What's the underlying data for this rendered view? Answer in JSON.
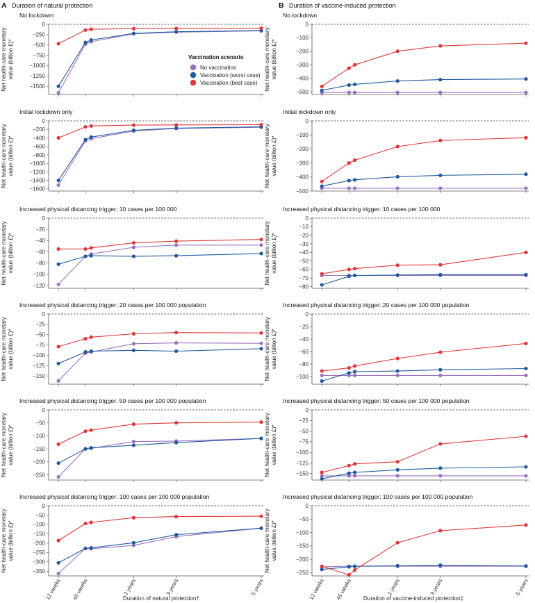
{
  "figure": {
    "panel_a": {
      "letter": "A",
      "title": "Duration of natural protection"
    },
    "panel_b": {
      "letter": "B",
      "title": "Duration of vaccine-induced protection"
    },
    "y_label_line1": "Net health-care monetary",
    "y_label_line2": "value (billion £)*",
    "x_label_a": "Duration of natural protection†",
    "x_label_b": "Duration of vaccine-induced protection‡",
    "x_ticks": [
      "12 weeks",
      "45 weeks",
      "2 years",
      "3 years",
      "5 years"
    ],
    "legend": {
      "title": "Vaccination scenario",
      "entries": [
        "No vaccination",
        "Vaccination (worst case)",
        "Vaccination (best case)"
      ]
    }
  },
  "colors": {
    "no_vaccination": "#9b72bd",
    "worst_case": "#1f5a9e",
    "best_case": "#e0373a",
    "axis": "#555555",
    "zero_line": "#333333"
  },
  "chart_data": [
    {
      "type": "line",
      "panel": "A",
      "title": "No lockdown",
      "ylim": [
        -1700,
        0
      ],
      "yticks": [
        0,
        -250,
        -500,
        -750,
        -1000,
        -1250,
        -1500
      ],
      "x": [
        12,
        45,
        52,
        104,
        156,
        260
      ],
      "series": [
        {
          "name": "No vaccination",
          "values": [
            -1660,
            -480,
            -420,
            -230,
            -190,
            -160
          ]
        },
        {
          "name": "Vaccination (worst case)",
          "values": [
            -1500,
            -440,
            -380,
            -220,
            -180,
            -150
          ]
        },
        {
          "name": "Vaccination (best case)",
          "values": [
            -470,
            -140,
            -120,
            -105,
            -100,
            -95
          ]
        }
      ]
    },
    {
      "type": "line",
      "panel": "A",
      "title": "Initial lockdown only",
      "ylim": [
        -1650,
        0
      ],
      "yticks": [
        0,
        -200,
        -400,
        -600,
        -800,
        -1000,
        -1200,
        -1400,
        -1600
      ],
      "x": [
        12,
        45,
        52,
        104,
        156,
        260
      ],
      "series": [
        {
          "name": "No vaccination",
          "values": [
            -1510,
            -470,
            -420,
            -240,
            -180,
            -150
          ]
        },
        {
          "name": "Vaccination (worst case)",
          "values": [
            -1400,
            -440,
            -380,
            -220,
            -170,
            -140
          ]
        },
        {
          "name": "Vaccination (best case)",
          "values": [
            -400,
            -140,
            -120,
            -100,
            -95,
            -90
          ]
        }
      ]
    },
    {
      "type": "line",
      "panel": "A",
      "title": "Increased physical distancing trigger: 10 cases per 100 000",
      "ylim": [
        -125,
        0
      ],
      "yticks": [
        0,
        -20,
        -40,
        -60,
        -80,
        -100,
        -120
      ],
      "x": [
        12,
        45,
        52,
        104,
        156,
        260
      ],
      "series": [
        {
          "name": "No vaccination",
          "values": [
            -118,
            -68,
            -64,
            -52,
            -48,
            -48
          ]
        },
        {
          "name": "Vaccination (worst case)",
          "values": [
            -82,
            -68,
            -67,
            -68,
            -67,
            -63
          ]
        },
        {
          "name": "Vaccination (best case)",
          "values": [
            -55,
            -55,
            -53,
            -44,
            -41,
            -38
          ]
        }
      ]
    },
    {
      "type": "line",
      "panel": "A",
      "title": "Increased physical distancing trigger: 20 cases per 100 000 population",
      "ylim": [
        -170,
        0
      ],
      "yticks": [
        0,
        -25,
        -50,
        -75,
        -100,
        -125,
        -150
      ],
      "x": [
        12,
        45,
        52,
        104,
        156,
        260
      ],
      "series": [
        {
          "name": "No vaccination",
          "values": [
            -162,
            -95,
            -92,
            -72,
            -70,
            -71
          ]
        },
        {
          "name": "Vaccination (worst case)",
          "values": [
            -120,
            -92,
            -90,
            -88,
            -90,
            -84
          ]
        },
        {
          "name": "Vaccination (best case)",
          "values": [
            -79,
            -60,
            -56,
            -48,
            -45,
            -46
          ]
        }
      ]
    },
    {
      "type": "line",
      "panel": "A",
      "title": "Increased physical distancing trigger: 50 cases per 100 000 population",
      "ylim": [
        -270,
        0
      ],
      "yticks": [
        0,
        -50,
        -100,
        -150,
        -200,
        -250
      ],
      "x": [
        12,
        45,
        52,
        104,
        156,
        260
      ],
      "series": [
        {
          "name": "No vaccination",
          "values": [
            -258,
            -150,
            -148,
            -122,
            -120,
            -110
          ]
        },
        {
          "name": "Vaccination (worst case)",
          "values": [
            -205,
            -150,
            -146,
            -136,
            -126,
            -110
          ]
        },
        {
          "name": "Vaccination (best case)",
          "values": [
            -132,
            -82,
            -78,
            -55,
            -50,
            -47
          ]
        }
      ]
    },
    {
      "type": "line",
      "panel": "A",
      "title": "Increased physical distancing trigger: 100 cases per 100 000 population",
      "ylim": [
        -375,
        0
      ],
      "yticks": [
        0,
        -50,
        -100,
        -150,
        -200,
        -250,
        -300,
        -350
      ],
      "x": [
        12,
        45,
        52,
        104,
        156,
        260
      ],
      "series": [
        {
          "name": "No vaccination",
          "values": [
            -362,
            -228,
            -230,
            -212,
            -165,
            -120
          ]
        },
        {
          "name": "Vaccination (worst case)",
          "values": [
            -305,
            -228,
            -225,
            -198,
            -155,
            -120
          ]
        },
        {
          "name": "Vaccination (best case)",
          "values": [
            -186,
            -95,
            -89,
            -64,
            -58,
            -56
          ]
        }
      ]
    },
    {
      "type": "line",
      "panel": "B",
      "title": "No lockdown",
      "ylim": [
        -520,
        0
      ],
      "yticks": [
        0,
        -100,
        -200,
        -300,
        -400,
        -500
      ],
      "x": [
        12,
        45,
        52,
        104,
        156,
        260
      ],
      "series": [
        {
          "name": "No vaccination",
          "values": [
            -505,
            -505,
            -505,
            -505,
            -505,
            -505
          ]
        },
        {
          "name": "Vaccination (worst case)",
          "values": [
            -490,
            -450,
            -445,
            -420,
            -410,
            -405
          ]
        },
        {
          "name": "Vaccination (best case)",
          "values": [
            -460,
            -325,
            -300,
            -200,
            -160,
            -140
          ]
        }
      ]
    },
    {
      "type": "line",
      "panel": "B",
      "title": "Initial lockdown only",
      "ylim": [
        -500,
        0
      ],
      "yticks": [
        0,
        -100,
        -200,
        -300,
        -400,
        -500
      ],
      "x": [
        12,
        45,
        52,
        104,
        156,
        260
      ],
      "series": [
        {
          "name": "No vaccination",
          "values": [
            -480,
            -480,
            -480,
            -480,
            -480,
            -480
          ]
        },
        {
          "name": "Vaccination (worst case)",
          "values": [
            -465,
            -425,
            -420,
            -398,
            -388,
            -380
          ]
        },
        {
          "name": "Vaccination (best case)",
          "values": [
            -432,
            -300,
            -280,
            -183,
            -140,
            -120
          ]
        }
      ]
    },
    {
      "type": "line",
      "panel": "B",
      "title": "Increased physical distancing trigger: 10 cases per 100 000",
      "ylim": [
        -82,
        0
      ],
      "yticks": [
        0,
        -10,
        -20,
        -30,
        -40,
        -50,
        -60,
        -70,
        -80
      ],
      "x": [
        12,
        45,
        52,
        104,
        156,
        260
      ],
      "series": [
        {
          "name": "No vaccination",
          "values": [
            -67,
            -67,
            -67,
            -67,
            -67,
            -67
          ]
        },
        {
          "name": "Vaccination (worst case)",
          "values": [
            -78,
            -68,
            -67,
            -66.5,
            -66,
            -66
          ]
        },
        {
          "name": "Vaccination (best case)",
          "values": [
            -65,
            -60,
            -59,
            -55,
            -54.5,
            -40
          ]
        }
      ]
    },
    {
      "type": "line",
      "panel": "B",
      "title": "Increased physical distancing trigger: 20 cases per 100 000 population",
      "ylim": [
        -112,
        0
      ],
      "yticks": [
        0,
        -20,
        -40,
        -60,
        -80,
        -100
      ],
      "x": [
        12,
        45,
        52,
        104,
        156,
        260
      ],
      "series": [
        {
          "name": "No vaccination",
          "values": [
            -98,
            -98,
            -98,
            -98,
            -98,
            -98
          ]
        },
        {
          "name": "Vaccination (worst case)",
          "values": [
            -107,
            -94,
            -92,
            -91,
            -89,
            -87
          ]
        },
        {
          "name": "Vaccination (best case)",
          "values": [
            -91,
            -86,
            -83,
            -71,
            -61,
            -47
          ]
        }
      ]
    },
    {
      "type": "line",
      "panel": "B",
      "title": "Increased physical distancing trigger: 50 cases per 100 000 population",
      "ylim": [
        -165,
        0
      ],
      "yticks": [
        0,
        -25,
        -50,
        -75,
        -100,
        -125,
        -150
      ],
      "x": [
        12,
        45,
        52,
        104,
        156,
        260
      ],
      "series": [
        {
          "name": "No vaccination",
          "values": [
            -155,
            -155,
            -155,
            -155,
            -155,
            -155
          ]
        },
        {
          "name": "Vaccination (worst case)",
          "values": [
            -162,
            -149,
            -147,
            -141,
            -137,
            -134
          ]
        },
        {
          "name": "Vaccination (best case)",
          "values": [
            -147,
            -131,
            -127,
            -122,
            -80,
            -62
          ]
        }
      ]
    },
    {
      "type": "line",
      "panel": "B",
      "title": "Increased physical distancing trigger: 100 cases per 100 000 population",
      "ylim": [
        -262,
        0
      ],
      "yticks": [
        0,
        -50,
        -100,
        -150,
        -200,
        -250
      ],
      "x": [
        12,
        45,
        52,
        104,
        156,
        260
      ],
      "series": [
        {
          "name": "No vaccination",
          "values": [
            -228,
            -226,
            -226,
            -226,
            -226,
            -226
          ]
        },
        {
          "name": "Vaccination (worst case)",
          "values": [
            -238,
            -228,
            -226,
            -224,
            -222,
            -225
          ]
        },
        {
          "name": "Vaccination (best case)",
          "values": [
            -226,
            -258,
            -240,
            -138,
            -93,
            -72
          ]
        }
      ]
    }
  ]
}
